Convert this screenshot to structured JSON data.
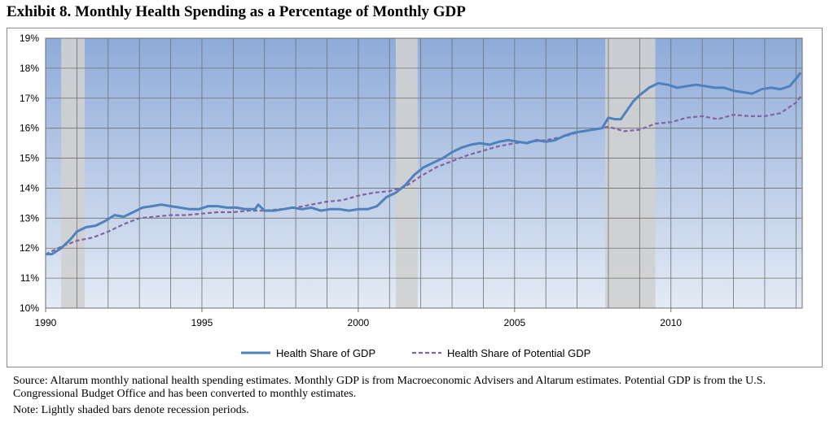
{
  "title": "Exhibit 8. Monthly Health Spending as a Percentage of Monthly GDP",
  "notes": {
    "source": "Source:  Altarum monthly national health spending estimates. Monthly GDP is from Macroeconomic Advisers and Altarum estimates. Potential GDP is from the U.S. Congressional Budget Office and has been converted to monthly estimates.",
    "note": "Note:  Lightly shaded bars denote recession periods."
  },
  "chart_data": {
    "type": "line",
    "title": "Exhibit 8. Monthly Health Spending as a Percentage of Monthly GDP",
    "xlabel": "",
    "ylabel": "",
    "xlim": [
      1990.0,
      2014.2
    ],
    "ylim": [
      10,
      19
    ],
    "y_ticks": [
      "10%",
      "11%",
      "12%",
      "13%",
      "14%",
      "15%",
      "16%",
      "17%",
      "18%",
      "19%"
    ],
    "x_ticks": [
      "1990",
      "1995",
      "2000",
      "2005",
      "2010"
    ],
    "grid": true,
    "legend": "bottom",
    "colors": {
      "plot_bg_top": "#8eabd9",
      "plot_bg_bottom": "#e4ebf5",
      "recession": "#d0d0d0",
      "grid": "#707070",
      "health": "#4f81bd",
      "potential": "#8064a2"
    },
    "recessions": [
      [
        1990.5,
        1991.25
      ],
      [
        2001.2,
        2001.9
      ],
      [
        2007.9,
        2009.5
      ]
    ],
    "series": [
      {
        "name": "Health Share of GDP",
        "style": "solid",
        "x": [
          1990.0,
          1990.2,
          1990.5,
          1990.8,
          1991.0,
          1991.3,
          1991.6,
          1991.9,
          1992.2,
          1992.5,
          1992.8,
          1993.1,
          1993.4,
          1993.7,
          1994.0,
          1994.3,
          1994.6,
          1994.9,
          1995.2,
          1995.5,
          1995.8,
          1996.1,
          1996.4,
          1996.7,
          1996.8,
          1997.0,
          1997.3,
          1997.6,
          1997.9,
          1998.2,
          1998.5,
          1998.8,
          1999.1,
          1999.4,
          1999.7,
          2000.0,
          2000.3,
          2000.6,
          2000.9,
          2001.2,
          2001.5,
          2001.8,
          2002.1,
          2002.4,
          2002.7,
          2003.0,
          2003.3,
          2003.6,
          2003.9,
          2004.2,
          2004.5,
          2004.8,
          2005.1,
          2005.4,
          2005.7,
          2006.0,
          2006.3,
          2006.6,
          2006.9,
          2007.2,
          2007.5,
          2007.8,
          2008.0,
          2008.2,
          2008.4,
          2008.6,
          2008.8,
          2009.0,
          2009.3,
          2009.6,
          2009.9,
          2010.2,
          2010.5,
          2010.8,
          2011.1,
          2011.4,
          2011.7,
          2012.0,
          2012.3,
          2012.6,
          2012.9,
          2013.2,
          2013.5,
          2013.8,
          2014.0,
          2014.15
        ],
        "y": [
          11.8,
          11.8,
          12.0,
          12.3,
          12.55,
          12.7,
          12.75,
          12.9,
          13.1,
          13.05,
          13.2,
          13.35,
          13.4,
          13.45,
          13.4,
          13.35,
          13.3,
          13.3,
          13.4,
          13.4,
          13.35,
          13.35,
          13.3,
          13.3,
          13.45,
          13.25,
          13.25,
          13.3,
          13.35,
          13.3,
          13.35,
          13.25,
          13.3,
          13.3,
          13.25,
          13.3,
          13.3,
          13.4,
          13.7,
          13.85,
          14.1,
          14.45,
          14.7,
          14.85,
          15.0,
          15.2,
          15.35,
          15.45,
          15.5,
          15.45,
          15.55,
          15.6,
          15.55,
          15.5,
          15.6,
          15.55,
          15.6,
          15.75,
          15.85,
          15.9,
          15.95,
          16.0,
          16.35,
          16.3,
          16.3,
          16.6,
          16.9,
          17.1,
          17.35,
          17.5,
          17.45,
          17.35,
          17.4,
          17.45,
          17.4,
          17.35,
          17.35,
          17.25,
          17.2,
          17.15,
          17.3,
          17.35,
          17.3,
          17.4,
          17.65,
          17.85
        ]
      },
      {
        "name": "Health Share of Potential GDP",
        "style": "dashed",
        "x": [
          1990.0,
          1990.5,
          1991.0,
          1991.5,
          1992.0,
          1992.5,
          1993.0,
          1993.5,
          1994.0,
          1994.5,
          1995.0,
          1995.5,
          1996.0,
          1996.5,
          1997.0,
          1997.5,
          1998.0,
          1998.5,
          1999.0,
          1999.5,
          2000.0,
          2000.5,
          2001.0,
          2001.5,
          2002.0,
          2002.5,
          2003.0,
          2003.5,
          2004.0,
          2004.5,
          2005.0,
          2005.5,
          2006.0,
          2006.5,
          2007.0,
          2007.5,
          2008.0,
          2008.5,
          2009.0,
          2009.5,
          2010.0,
          2010.5,
          2011.0,
          2011.5,
          2012.0,
          2012.5,
          2013.0,
          2013.5,
          2014.0,
          2014.15
        ],
        "y": [
          11.8,
          12.05,
          12.25,
          12.35,
          12.55,
          12.8,
          13.0,
          13.05,
          13.1,
          13.1,
          13.15,
          13.2,
          13.2,
          13.25,
          13.25,
          13.3,
          13.35,
          13.45,
          13.55,
          13.6,
          13.75,
          13.85,
          13.9,
          14.05,
          14.4,
          14.7,
          14.9,
          15.1,
          15.25,
          15.4,
          15.5,
          15.55,
          15.6,
          15.7,
          15.85,
          15.95,
          16.05,
          15.9,
          15.95,
          16.15,
          16.2,
          16.35,
          16.4,
          16.3,
          16.45,
          16.4,
          16.4,
          16.5,
          16.85,
          17.05
        ]
      }
    ]
  }
}
